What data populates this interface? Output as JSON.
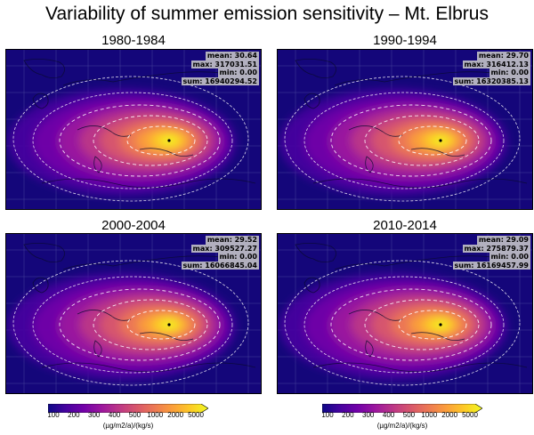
{
  "title": "Variability of summer emission sensitivity – Mt. Elbrus",
  "panels": [
    {
      "period": "1980-1984",
      "mean": "mean: 30.64",
      "max": "max: 317031.51",
      "min": "min: 0.00",
      "sum": "sum: 16940294.52",
      "level": 1.0
    },
    {
      "period": "1990-1994",
      "mean": "mean: 29.70",
      "max": "max: 316412.13",
      "min": "min: 0.00",
      "sum": "sum: 16320385.13",
      "level": 0.96
    },
    {
      "period": "2000-2004",
      "mean": "mean: 29.52",
      "max": "max: 309527.27",
      "min": "min: 0.00",
      "sum": "sum: 16066845.04",
      "level": 0.95
    },
    {
      "period": "2010-2014",
      "mean": "mean: 29.09",
      "max": "max: 275879.37",
      "min": "min: 0.00",
      "sum": "sum: 16169457.99",
      "level": 0.93
    }
  ],
  "colorbar": {
    "ticks": [
      "100",
      "200",
      "300",
      "400",
      "500",
      "1000",
      "2000",
      "5000"
    ],
    "unit": "(µg/m2/a)/(kg/s)",
    "colors": [
      "#0d0887",
      "#46039f",
      "#7201a8",
      "#9c179e",
      "#bd3786",
      "#d8576b",
      "#ed7953",
      "#fb9f3a",
      "#fdca26",
      "#f0f921"
    ]
  },
  "map_colors": {
    "background": "#14067a",
    "coast": "#0a0a30",
    "contour": "#ffffff",
    "grid": "#6a6ab0"
  }
}
